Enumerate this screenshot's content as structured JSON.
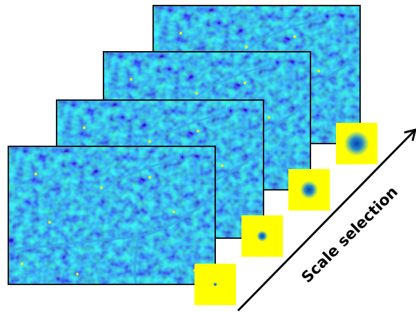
{
  "diagram": {
    "label": "Scale selection"
  }
}
